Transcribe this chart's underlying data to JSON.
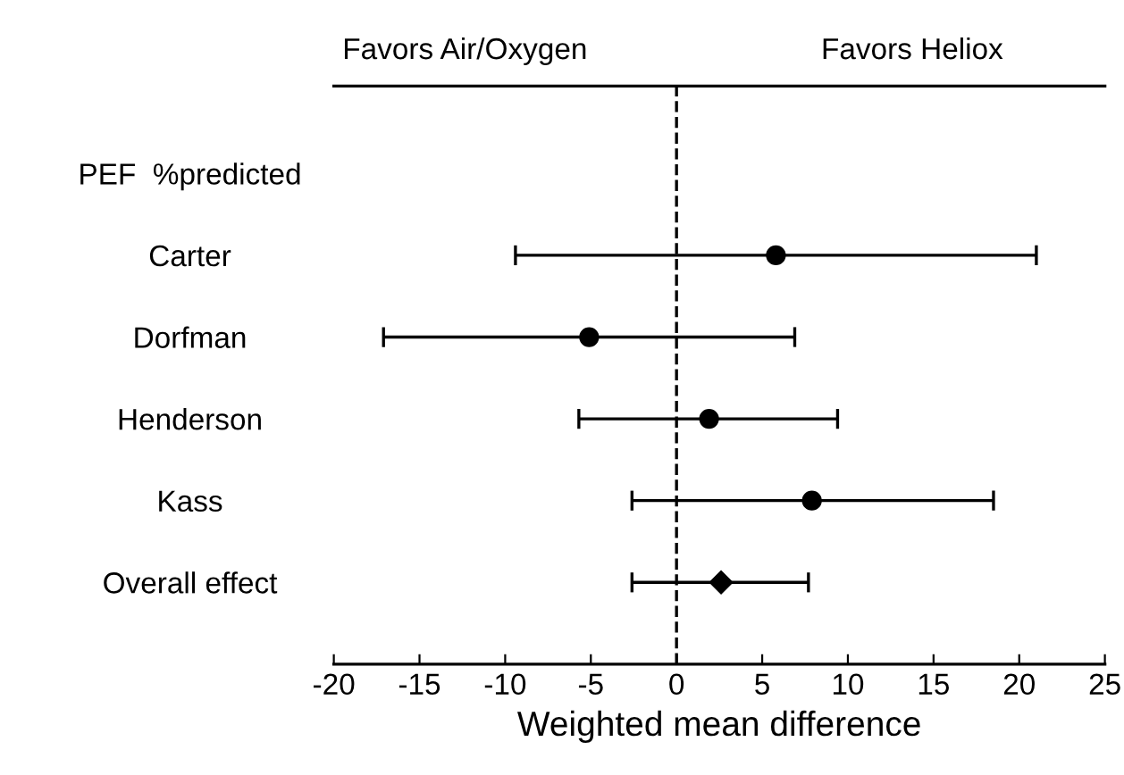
{
  "chart_data": {
    "type": "scatter",
    "orientation": "horizontal",
    "categories": [
      "PEF  %predicted",
      "Carter",
      "Dorfman",
      "Henderson",
      "Kass",
      "Overall effect"
    ],
    "series": [
      {
        "color": "#000000",
        "marker": "circle",
        "values": [
          null,
          5.8,
          -5.1,
          1.9,
          7.9,
          null
        ],
        "errors": [
          null,
          [
            -9.4,
            21.0
          ],
          [
            -17.1,
            6.9
          ],
          [
            -5.7,
            9.4
          ],
          [
            -2.6,
            18.5
          ],
          null
        ]
      },
      {
        "color": "#000000",
        "marker": "diamond",
        "values": [
          null,
          null,
          null,
          null,
          null,
          2.6
        ],
        "errors": [
          null,
          null,
          null,
          null,
          null,
          [
            -2.6,
            7.7
          ]
        ]
      }
    ],
    "xlabel": "Weighted mean difference",
    "xlim": [
      -20,
      25
    ],
    "xticks": [
      -20,
      -15,
      -10,
      -5,
      0,
      5,
      10,
      15,
      20,
      25
    ],
    "ref_lines": [
      {
        "axis": "x",
        "value": 0,
        "line_style": "dashed",
        "color": "#000000"
      }
    ],
    "annotations": [
      "Favors Air/Oxygen",
      "Favors Heliox"
    ],
    "grid": false,
    "legend": false
  }
}
